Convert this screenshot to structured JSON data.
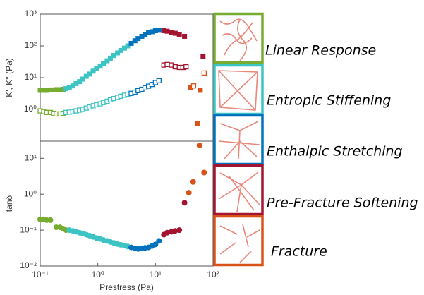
{
  "chart_data": [
    {
      "type": "scatter",
      "ylabel": "K', K'' (Pa)",
      "log": true,
      "xlim": [
        0.1,
        100
      ],
      "ylim": [
        0.1,
        1000
      ],
      "yticks": [
        {
          "value": 1,
          "label": "10⁰"
        },
        {
          "value": 10,
          "label": "10¹"
        },
        {
          "value": 100,
          "label": "10²"
        },
        {
          "value": 1000,
          "label": "10³"
        }
      ],
      "series": [
        {
          "color": "#77ac30",
          "marker": "square",
          "x": [
            0.1,
            0.115,
            0.13,
            0.15,
            0.17,
            0.19,
            0.22,
            0.25
          ],
          "values": [
            4.0,
            4.0,
            4.0,
            4.1,
            4.1,
            4.2,
            4.2,
            4.3
          ]
        },
        {
          "color": "#77ac30",
          "marker": "open-square",
          "x": [
            0.1,
            0.115,
            0.13,
            0.15,
            0.17,
            0.19,
            0.22,
            0.25
          ],
          "values": [
            0.9,
            0.85,
            0.8,
            0.8,
            0.75,
            0.72,
            0.72,
            0.75
          ]
        },
        {
          "color": "#3cc3c3",
          "marker": "square",
          "x": [
            0.28,
            0.32,
            0.37,
            0.42,
            0.48,
            0.55,
            0.63,
            0.72,
            0.83,
            0.95,
            1.1,
            1.25,
            1.45,
            1.65,
            1.9,
            2.2,
            2.5,
            2.9,
            3.3
          ],
          "values": [
            4.5,
            5,
            5.5,
            6.5,
            7.5,
            9,
            11,
            13,
            16,
            19,
            23,
            28,
            34,
            41,
            50,
            60,
            72,
            85,
            100
          ]
        },
        {
          "color": "#3cc3c3",
          "marker": "open-square",
          "x": [
            0.28,
            0.32,
            0.37,
            0.42,
            0.48,
            0.55,
            0.63,
            0.72,
            0.83,
            0.95,
            1.1,
            1.25,
            1.45,
            1.65,
            1.9,
            2.2,
            2.5,
            2.9,
            3.3
          ],
          "values": [
            0.8,
            0.82,
            0.85,
            0.9,
            0.95,
            1.0,
            1.1,
            1.2,
            1.3,
            1.4,
            1.5,
            1.65,
            1.8,
            2.0,
            2.2,
            2.4,
            2.6,
            2.8,
            3.0
          ]
        },
        {
          "color": "#0072bd",
          "marker": "square",
          "x": [
            3.8,
            4.4,
            5,
            5.8,
            6.6,
            7.6,
            8.7,
            10,
            11.5
          ],
          "values": [
            120,
            145,
            170,
            200,
            230,
            260,
            280,
            300,
            310
          ]
        },
        {
          "color": "#0072bd",
          "marker": "open-square",
          "x": [
            3.8,
            4.4,
            5,
            5.8,
            6.6,
            7.6,
            8.7,
            10,
            11.5
          ],
          "values": [
            3.2,
            3.5,
            3.9,
            4.3,
            4.8,
            5.4,
            6.1,
            7,
            8
          ]
        },
        {
          "color": "#a2142f",
          "marker": "square",
          "x": [
            14,
            16,
            19,
            22,
            26,
            32,
            67
          ],
          "values": [
            300,
            290,
            270,
            250,
            230,
            200,
            46
          ]
        },
        {
          "color": "#a2142f",
          "marker": "open-square",
          "x": [
            14,
            16,
            19,
            22,
            26,
            30,
            34
          ],
          "values": [
            25,
            26,
            25,
            22,
            21,
            21,
            22
          ]
        },
        {
          "color": "#d95319",
          "marker": "square",
          "x": [
            41,
            53,
            60
          ],
          "values": [
            4.8,
            0.36,
            4.0
          ]
        },
        {
          "color": "#d95319",
          "marker": "open-square",
          "x": [
            46,
            70
          ],
          "values": [
            5.5,
            14
          ]
        }
      ]
    },
    {
      "type": "scatter",
      "ylabel": "tanδ",
      "xlabel": "Prestress (Pa)",
      "log": true,
      "xlim": [
        0.1,
        100
      ],
      "ylim": [
        0.01,
        30
      ],
      "xticks": [
        {
          "value": 0.1,
          "label": "10⁻¹"
        },
        {
          "value": 1,
          "label": "10⁰"
        },
        {
          "value": 10,
          "label": "10¹"
        },
        {
          "value": 100,
          "label": "10²"
        }
      ],
      "yticks": [
        {
          "value": 0.01,
          "label": "10⁻²"
        },
        {
          "value": 0.1,
          "label": "10⁻¹"
        },
        {
          "value": 1,
          "label": "10⁰"
        },
        {
          "value": 10,
          "label": "10¹"
        }
      ],
      "series": [
        {
          "color": "#77ac30",
          "marker": "circle",
          "x": [
            0.1,
            0.115,
            0.13,
            0.15,
            0.19,
            0.22,
            0.25,
            0.28
          ],
          "values": [
            0.2,
            0.2,
            0.19,
            0.19,
            0.12,
            0.12,
            0.11,
            0.1
          ]
        },
        {
          "color": "#3cc3c3",
          "marker": "circle",
          "x": [
            0.32,
            0.37,
            0.42,
            0.48,
            0.55,
            0.63,
            0.72,
            0.83,
            0.95,
            1.1,
            1.25,
            1.45,
            1.65,
            1.9,
            2.2,
            2.5,
            2.9,
            3.3
          ],
          "values": [
            0.1,
            0.095,
            0.09,
            0.085,
            0.08,
            0.075,
            0.07,
            0.065,
            0.06,
            0.057,
            0.053,
            0.05,
            0.047,
            0.044,
            0.041,
            0.039,
            0.037,
            0.035
          ]
        },
        {
          "color": "#0072bd",
          "marker": "circle",
          "x": [
            3.8,
            4.4,
            5,
            5.8,
            6.6,
            7.6,
            8.7,
            10,
            11.5
          ],
          "values": [
            0.033,
            0.031,
            0.03,
            0.031,
            0.032,
            0.033,
            0.036,
            0.04,
            0.05
          ]
        },
        {
          "color": "#a2142f",
          "marker": "circle",
          "x": [
            14,
            16,
            19,
            22,
            26,
            32
          ],
          "values": [
            0.075,
            0.085,
            0.09,
            0.095,
            0.1,
            0.58
          ]
        },
        {
          "color": "#d95319",
          "marker": "circle",
          "x": [
            38,
            45,
            58,
            70
          ],
          "values": [
            1.1,
            2.2,
            23,
            4
          ]
        }
      ]
    }
  ],
  "legend": [
    {
      "name": "Linear Response",
      "color": "#77ac30"
    },
    {
      "name": "Entropic Stiffening",
      "color": "#3cc3c3"
    },
    {
      "name": "Enthalpic Stretching",
      "color": "#0072bd"
    },
    {
      "name": "Pre-Fracture Softening",
      "color": "#a2142f"
    },
    {
      "name": "Fracture",
      "color": "#d95319"
    }
  ]
}
